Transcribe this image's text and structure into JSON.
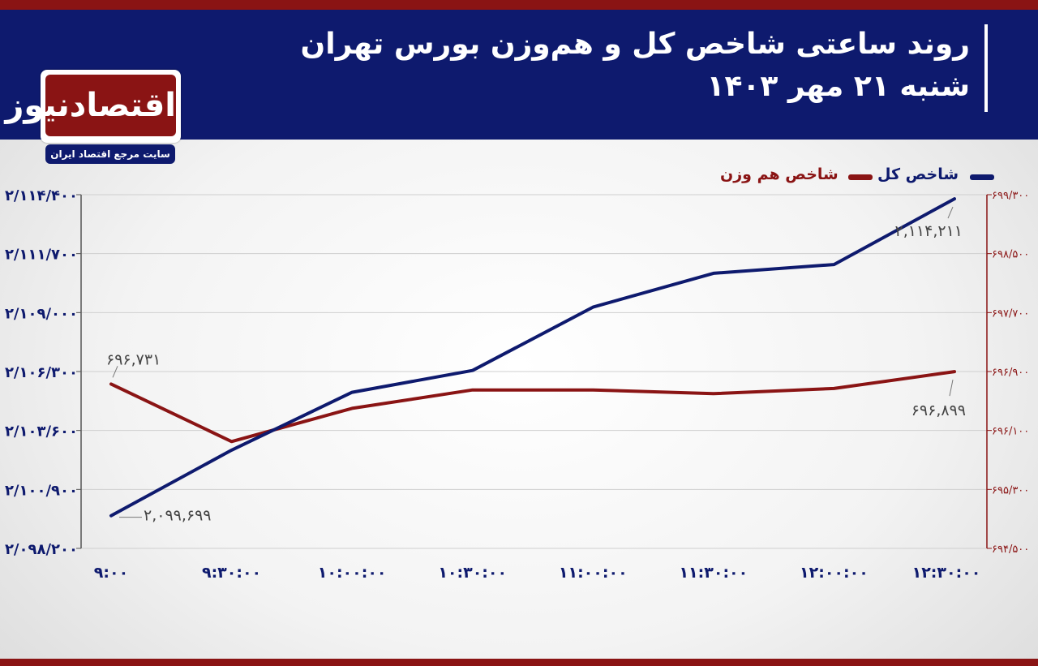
{
  "header": {
    "title_line1": "روند ساعتی شاخص کل و هم‌وزن بورس تهران",
    "title_line2": "شنبه ۲۱ مهر ۱۴۰۳"
  },
  "logo": {
    "name": "اقتصادنیوز",
    "tagline": "سایت مرجع اقتصاد ایران"
  },
  "colors": {
    "header_bg": "#0e1a6e",
    "accent_red": "#8a1414",
    "series_total": "#0e1a6e",
    "series_equal": "#8a1414"
  },
  "chart_data": {
    "type": "line",
    "categories": [
      "۹:۰۰",
      "۹:۳۰:۰۰",
      "۱۰:۰۰:۰۰",
      "۱۰:۳۰:۰۰",
      "۱۱:۰۰:۰۰",
      "۱۱:۳۰:۰۰",
      "۱۲:۰۰:۰۰",
      "۱۲:۳۰:۰۰"
    ],
    "series": [
      {
        "name": "شاخص کل",
        "axis": "left",
        "color": "#0e1a6e",
        "values": [
          2099699,
          2102700,
          2105350,
          2106350,
          2109250,
          2110800,
          2111200,
          2114211
        ]
      },
      {
        "name": "شاخص هم وزن",
        "axis": "right",
        "color": "#8a1414",
        "values": [
          696731,
          695950,
          696400,
          696650,
          696650,
          696600,
          696670,
          696899
        ]
      }
    ],
    "left_axis": {
      "ylim": [
        2098200,
        2114400
      ],
      "ticks": [
        2098200,
        2100900,
        2103600,
        2106300,
        2109000,
        2111700,
        2114400
      ],
      "tick_labels": [
        "۲/۰۹۸/۲۰۰",
        "۲/۱۰۰/۹۰۰",
        "۲/۱۰۳/۶۰۰",
        "۲/۱۰۶/۳۰۰",
        "۲/۱۰۹/۰۰۰",
        "۲/۱۱۱/۷۰۰",
        "۲/۱۱۴/۴۰۰"
      ]
    },
    "right_axis": {
      "ylim": [
        694500,
        699300
      ],
      "ticks": [
        694500,
        695300,
        696100,
        696900,
        697700,
        698500,
        699300
      ],
      "tick_labels": [
        "۶۹۴/۵۰۰",
        "۶۹۵/۳۰۰",
        "۶۹۶/۱۰۰",
        "۶۹۶/۹۰۰",
        "۶۹۷/۷۰۰",
        "۶۹۸/۵۰۰",
        "۶۹۹/۳۰۰"
      ]
    },
    "annotations": [
      {
        "series": 0,
        "index": 0,
        "text": "۲,۰۹۹,۶۹۹"
      },
      {
        "series": 0,
        "index": 7,
        "text": "۲,۱۱۴,۲۱۱"
      },
      {
        "series": 1,
        "index": 0,
        "text": "۶۹۶,۷۳۱"
      },
      {
        "series": 1,
        "index": 7,
        "text": "۶۹۶,۸۹۹"
      }
    ],
    "grid": true,
    "legend_position": "top-right"
  }
}
